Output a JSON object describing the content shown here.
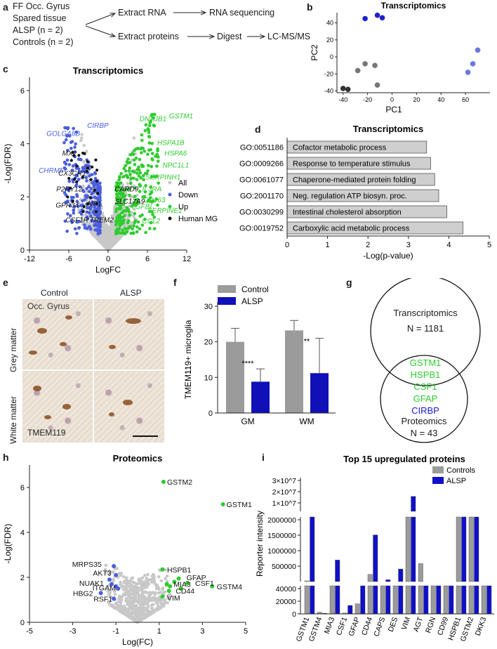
{
  "panel_labels": {
    "a": "a",
    "b": "b",
    "c": "c",
    "d": "d",
    "e": "e",
    "f": "f",
    "g": "g",
    "h": "h",
    "i": "i"
  },
  "panel_a": {
    "lines": [
      "FF Occ. Gyrus",
      "Spared tissue",
      "ALSP (n = 2)",
      "Controls (n = 2)"
    ],
    "step_rna": "Extract RNA",
    "step_seq": "RNA sequencing",
    "step_prot": "Extract proteins",
    "step_digest": "Digest",
    "step_ms": "LC-MS/MS"
  },
  "colors": {
    "alsp": "#1f1fbf",
    "alsp_light": "#6b78e0",
    "control": "#9b9b9b",
    "control_dark": "#4a4a4a",
    "up": "#2ecc2e",
    "down": "#4a5ee0",
    "all": "#c8c8c8",
    "mg": "#111111"
  },
  "chart_data": [
    {
      "id": "b",
      "type": "scatter",
      "title": "Transcriptomics",
      "xlabel": "PC1",
      "ylabel": "PC2",
      "xlim": [
        -45,
        80
      ],
      "ylim": [
        -42,
        52
      ],
      "xticks": [
        -40,
        -20,
        0,
        20,
        40,
        60
      ],
      "yticks": [
        -40,
        -20,
        0,
        20,
        40
      ],
      "series": [
        {
          "color": "#2020c8",
          "points": [
            [
              -22,
              45
            ],
            [
              -12,
              49
            ],
            [
              -8,
              46
            ]
          ]
        },
        {
          "color": "#6b78e0",
          "points": [
            [
              62,
              -18
            ],
            [
              66,
              -8
            ],
            [
              70,
              8
            ]
          ]
        },
        {
          "color": "#777777",
          "points": [
            [
              -28,
              -16
            ],
            [
              -22,
              -8
            ],
            [
              -14,
              -10
            ],
            [
              -12,
              -33
            ]
          ]
        },
        {
          "color": "#333333",
          "points": [
            [
              -40,
              -37
            ],
            [
              -36,
              -38
            ]
          ]
        }
      ]
    },
    {
      "id": "c",
      "type": "scatter",
      "title": "Transcriptomics",
      "xlabel": "LogFC",
      "ylabel": "-Log(FDR)",
      "xlim": [
        -12,
        12
      ],
      "ylim": [
        0,
        6.5
      ],
      "xticks": [
        -12,
        -6,
        0,
        6,
        12
      ],
      "yticks": [
        0,
        2,
        4,
        6
      ],
      "legend": [
        "All",
        "Down",
        "Up",
        "Human MG"
      ],
      "labels": [
        {
          "text": "CIRBP",
          "x": -3.2,
          "y": 4.6,
          "color": "#4a5ee0"
        },
        {
          "text": "GOLGA8B",
          "x": -9.4,
          "y": 4.3,
          "color": "#4a5ee0"
        },
        {
          "text": "MX2",
          "x": -7.0,
          "y": 3.55,
          "color": "#111111"
        },
        {
          "text": "CHRM5",
          "x": -10.6,
          "y": 2.9,
          "color": "#4a5ee0"
        },
        {
          "text": "CX3CR1",
          "x": -7.6,
          "y": 2.8,
          "color": "#111111"
        },
        {
          "text": "P2RY12",
          "x": -7.9,
          "y": 2.2,
          "color": "#111111"
        },
        {
          "text": "GPR34",
          "x": -8.0,
          "y": 1.6,
          "color": "#111111"
        },
        {
          "text": "AIF1",
          "x": -3.3,
          "y": 1.65,
          "color": "#111111"
        },
        {
          "text": "CSF1R",
          "x": -6.5,
          "y": 1.05,
          "color": "#111111"
        },
        {
          "text": "TREM2",
          "x": -2.8,
          "y": 1.05,
          "color": "#111111"
        },
        {
          "text": "DNAJB1",
          "x": 4.8,
          "y": 4.85,
          "color": "#2ecc2e"
        },
        {
          "text": "GSTM1",
          "x": 9.3,
          "y": 4.95,
          "color": "#2ecc2e"
        },
        {
          "text": "HSPA1B",
          "x": 7.5,
          "y": 3.95,
          "color": "#2ecc2e"
        },
        {
          "text": "HSPA6",
          "x": 8.6,
          "y": 3.55,
          "color": "#2ecc2e"
        },
        {
          "text": "NPC1L1",
          "x": 8.3,
          "y": 3.1,
          "color": "#2ecc2e"
        },
        {
          "text": "SERPINH1",
          "x": 5.7,
          "y": 2.65,
          "color": "#2ecc2e"
        },
        {
          "text": "CARD9",
          "x": 1.0,
          "y": 2.2,
          "color": "#111111"
        },
        {
          "text": "IL3RA",
          "x": 5.2,
          "y": 2.2,
          "color": "#2ecc2e"
        },
        {
          "text": "CD163",
          "x": 5.4,
          "y": 1.8,
          "color": "#2ecc2e"
        },
        {
          "text": "SLC17A9",
          "x": 1.0,
          "y": 1.75,
          "color": "#111111"
        },
        {
          "text": "SERPINE1",
          "x": 6.0,
          "y": 1.4,
          "color": "#2ecc2e"
        },
        {
          "text": "CCL2",
          "x": 5.2,
          "y": 1.0,
          "color": "#2ecc2e"
        },
        {
          "text": "TGFBI",
          "x": 3.5,
          "y": 1.55,
          "color": "#2ecc2e"
        }
      ]
    },
    {
      "id": "d",
      "type": "bar",
      "title": "Transcriptomics",
      "xlabel": "-Log(p-value)",
      "xlim": [
        0,
        5
      ],
      "xticks": [
        0,
        1,
        2,
        3,
        4,
        5
      ],
      "categories": [
        "GO:0051186",
        "GO:0009266",
        "GO:0061077",
        "GO:2001170",
        "GO:0030299",
        "GO:0019752"
      ],
      "descriptions": [
        "Cofactor metabolic process",
        "Response to temperature stimulus",
        "Chaperone-mediated protein folding",
        "Neg. regulation ATP biosyn. proc.",
        "Intestinal cholesterol absorption",
        "Carboxylic acid metabolic process"
      ],
      "values": [
        3.45,
        3.55,
        3.65,
        3.75,
        3.95,
        4.35
      ]
    },
    {
      "id": "f",
      "type": "bar",
      "ylabel": "TMEM119+ microglia",
      "ylim": [
        0,
        30
      ],
      "yticks": [
        0,
        10,
        20,
        30
      ],
      "categories": [
        "GM",
        "WM"
      ],
      "series": [
        {
          "name": "Control",
          "values": [
            20,
            23.2
          ],
          "err": [
            3.8,
            2.8
          ],
          "color": "#9b9b9b"
        },
        {
          "name": "ALSP",
          "values": [
            8.8,
            11.2
          ],
          "err": [
            3.6,
            9.8
          ],
          "color": "#1010b8"
        }
      ],
      "annotations": [
        "****",
        "**"
      ]
    },
    {
      "id": "h",
      "type": "scatter",
      "title": "Proteomics",
      "xlabel": "Log(FC)",
      "ylabel": "-Log(FDR)",
      "xlim": [
        -5,
        5
      ],
      "ylim": [
        0,
        7
      ],
      "xticks": [
        -5,
        -3,
        -1,
        1,
        3,
        5
      ],
      "yticks": [
        0,
        2,
        4,
        6
      ],
      "labels": [
        {
          "text": "GSTM2",
          "x": 1.2,
          "y": 6.25,
          "color": "#2ecc2e"
        },
        {
          "text": "GSTM1",
          "x": 3.95,
          "y": 5.25,
          "color": "#2ecc2e"
        },
        {
          "text": "HSPB1",
          "x": 1.2,
          "y": 2.35,
          "color": "#2ecc2e"
        },
        {
          "text": "GFAP",
          "x": 2.1,
          "y": 2.0,
          "color": "#2ecc2e"
        },
        {
          "text": "MIA3",
          "x": 1.5,
          "y": 1.7,
          "color": "#2ecc2e"
        },
        {
          "text": "CSF1",
          "x": 2.5,
          "y": 1.75,
          "color": "#2ecc2e"
        },
        {
          "text": "GSTM4",
          "x": 3.5,
          "y": 1.6,
          "color": "#2ecc2e"
        },
        {
          "text": "CD44",
          "x": 1.6,
          "y": 1.4,
          "color": "#2ecc2e"
        },
        {
          "text": "VIM",
          "x": 1.2,
          "y": 1.1,
          "color": "#2ecc2e"
        },
        {
          "text": "MRPS35",
          "x": -1.5,
          "y": 2.6,
          "color": "#4a5ee0"
        },
        {
          "text": "AKT3",
          "x": -1.05,
          "y": 2.2,
          "color": "#4a5ee0"
        },
        {
          "text": "NUAK1",
          "x": -1.4,
          "y": 1.75,
          "color": "#4a5ee0"
        },
        {
          "text": "ITGAM",
          "x": -0.85,
          "y": 1.55,
          "color": "#4a5ee0"
        },
        {
          "text": "HBG2",
          "x": -1.9,
          "y": 1.3,
          "color": "#4a5ee0"
        },
        {
          "text": "RSF1",
          "x": -1.0,
          "y": 1.05,
          "color": "#4a5ee0"
        }
      ]
    },
    {
      "id": "i",
      "type": "bar",
      "title": "Top 15 upregulated proteins",
      "ylabel": "Reporter intensity",
      "categories": [
        "GSTM1",
        "GSTM4",
        "MIA3",
        "CSF1",
        "GFAP",
        "CD44",
        "CAPS",
        "DES",
        "VIM",
        "AGT",
        "RGN",
        "CD99",
        "HSPB1",
        "GSTM2",
        "DKK3"
      ],
      "series": [
        {
          "name": "Controls",
          "color": "#9b9b9b",
          "values": [
            320000,
            3000,
            120000,
            1500,
            18000,
            500000,
            150000,
            180000,
            4800000,
            800000,
            120000,
            120000,
            4200000,
            3300000,
            200000
          ]
        },
        {
          "name": "ALSP",
          "color": "#1010c8",
          "values": [
            3800000,
            1000,
            900000,
            15000,
            150000,
            1600000,
            350000,
            650000,
            17000000,
            250000,
            140000,
            250000,
            4800000,
            4800000,
            260000
          ]
        }
      ],
      "yticks_top": [
        "3×10^7",
        "2×10^7",
        "1×10^7"
      ],
      "yticks_mid": [
        "2000000",
        "1500000",
        "1000000",
        "500000"
      ],
      "yticks_bot": [
        "40000",
        "20000",
        "0"
      ]
    }
  ],
  "panel_e": {
    "col_control": "Control",
    "col_alsp": "ALSP",
    "row_grey": "Grey matter",
    "row_white": "White matter",
    "region": "Occ. Gyrus",
    "stain": "TMEM119"
  },
  "panel_g": {
    "title_top": "Transcriptomics",
    "n_top": "N = 1181",
    "title_bot": "Proteomics",
    "n_bot": "N = 43",
    "shared": [
      "GSTM1",
      "HSPB1",
      "CSF1",
      "GFAP",
      "CIRBP"
    ],
    "shared_colors": [
      "#2ecc2e",
      "#2ecc2e",
      "#2ecc2e",
      "#2ecc2e",
      "#1a1ad0"
    ]
  }
}
